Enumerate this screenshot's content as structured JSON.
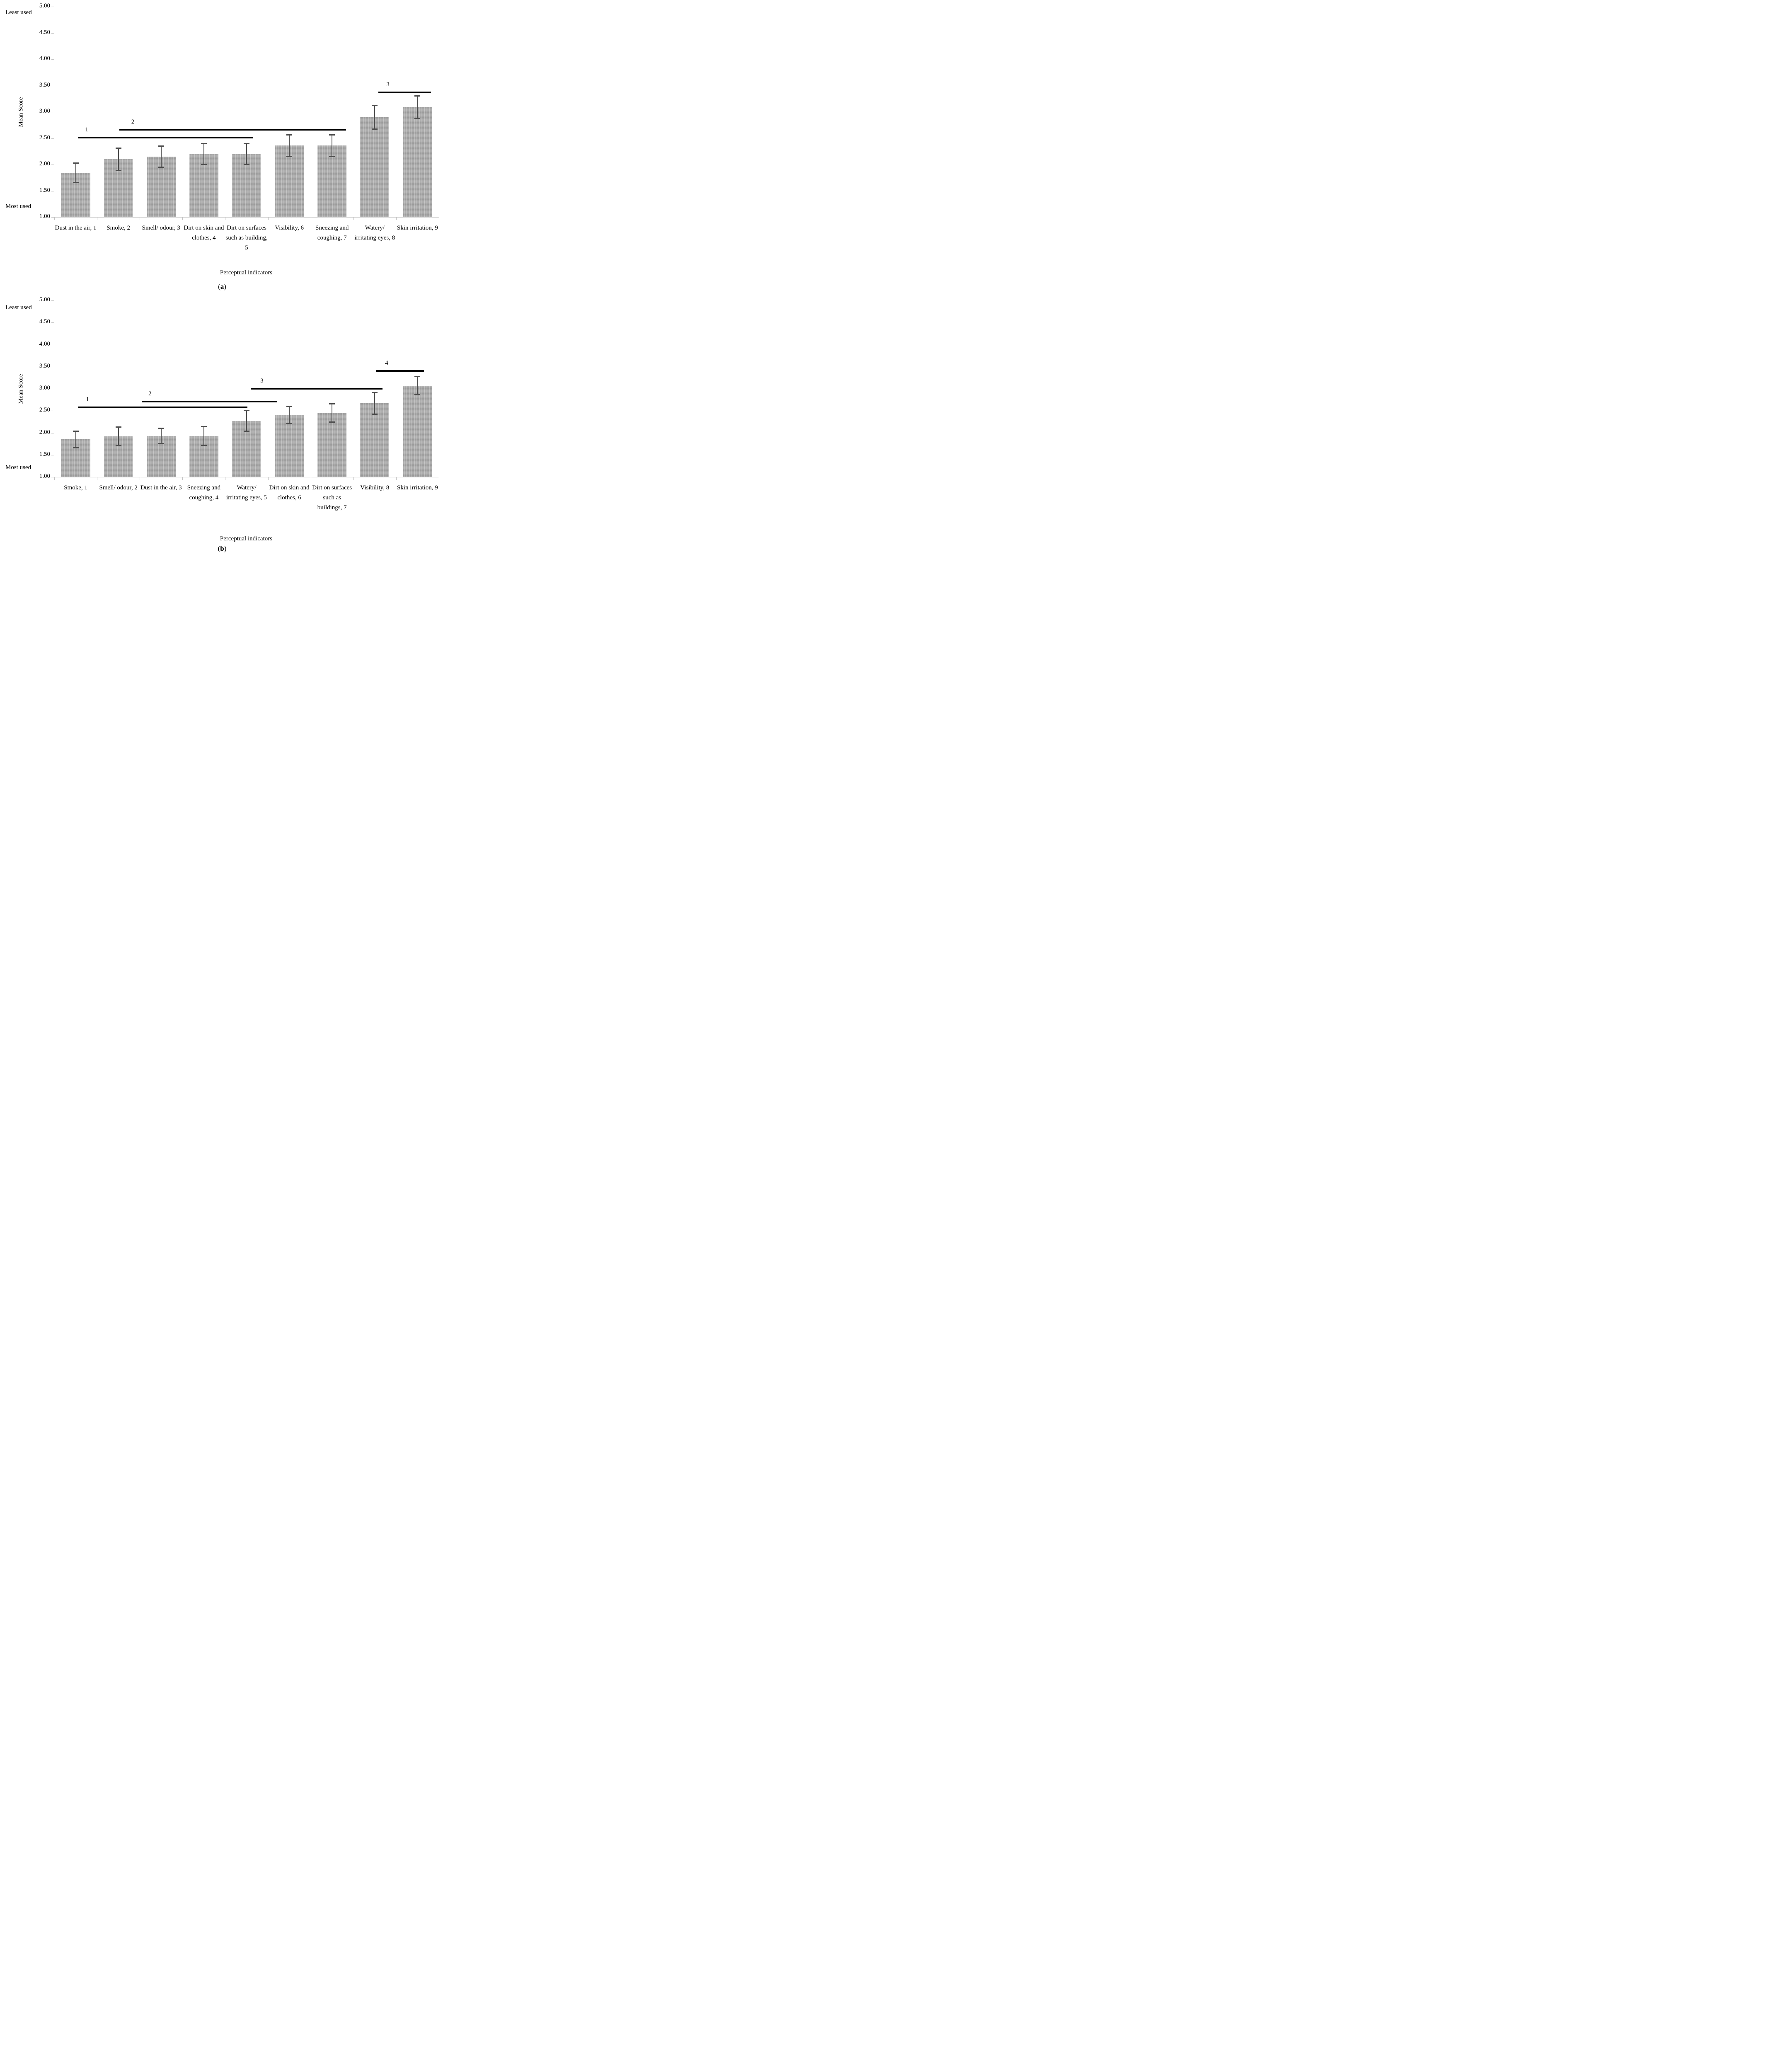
{
  "colors": {
    "bar_fill": "#adadad",
    "error_bar": "#4d4d4d",
    "significance_line": "#000000",
    "axis": "#c2c2c2",
    "text": "#000000"
  },
  "chart_data": [
    {
      "type": "bar",
      "caption": {
        "open": "(",
        "letter": "a",
        "close": ")"
      },
      "ylabel": "Mean Score",
      "xlabel": "Perceptual indicators",
      "annotations": {
        "top": "Least used",
        "bottom": "Most used"
      },
      "ylim": [
        1.0,
        5.0
      ],
      "grid": "off",
      "legend": "none",
      "yticks": [
        "5.00",
        "4.50",
        "4.00",
        "3.50",
        "3.00",
        "2.50",
        "2.00",
        "1.50",
        "1.00"
      ],
      "categories": [
        "Dust in the air, 1",
        "Smoke, 2",
        "Smell/ odour, 3",
        "Dirt on skin and clothes, 4",
        "Dirt on surfaces such as building, 5",
        "Visibility, 6",
        "Sneezing and coughing, 7",
        "Watery/ irritating eyes, 8",
        "Skin irritation, 9"
      ],
      "values": [
        1.84,
        2.1,
        2.15,
        2.2,
        2.2,
        2.36,
        2.36,
        2.9,
        3.09
      ],
      "errors": [
        0.18,
        0.21,
        0.2,
        0.19,
        0.19,
        0.2,
        0.2,
        0.22,
        0.21
      ],
      "sig_lines": [
        {
          "label": "1",
          "x1": 0.55,
          "x2": 4.65,
          "y": 2.51,
          "lx": 0.7
        },
        {
          "label": "2",
          "x1": 1.52,
          "x2": 6.83,
          "y": 2.66,
          "lx": 1.78
        },
        {
          "label": "3",
          "x1": 7.58,
          "x2": 8.82,
          "y": 3.37,
          "lx": 7.75
        }
      ]
    },
    {
      "type": "bar",
      "caption": {
        "open": "(",
        "letter": "b",
        "close": ")"
      },
      "ylabel": "Mean Score",
      "xlabel": "Perceptual indicators",
      "annotations": {
        "top": "Least used",
        "bottom": "Most used"
      },
      "ylim": [
        1.0,
        5.0
      ],
      "grid": "off",
      "legend": "none",
      "yticks": [
        "5.00",
        "4.50",
        "4.00",
        "3.50",
        "3.00",
        "2.50",
        "2.00",
        "1.50",
        "1.00"
      ],
      "categories": [
        "Smoke, 1",
        "Smell/ odour, 2",
        "Dust in the air, 3",
        "Sneezing and coughing, 4",
        "Watery/ irritating eyes, 5",
        "Dirt on skin and clothes, 6",
        "Dirt on surfaces such as buildings, 7",
        "Visibility, 8",
        "Skin irritation, 9"
      ],
      "values": [
        1.85,
        1.92,
        1.93,
        1.93,
        2.27,
        2.41,
        2.45,
        2.67,
        3.07
      ],
      "errors": [
        0.18,
        0.21,
        0.17,
        0.21,
        0.23,
        0.19,
        0.2,
        0.24,
        0.2
      ],
      "sig_lines": [
        {
          "label": "1",
          "x1": 0.55,
          "x2": 4.52,
          "y": 2.58,
          "lx": 0.72
        },
        {
          "label": "2",
          "x1": 2.05,
          "x2": 5.22,
          "y": 2.71,
          "lx": 2.18
        },
        {
          "label": "3",
          "x1": 4.6,
          "x2": 7.68,
          "y": 3.0,
          "lx": 4.8
        },
        {
          "label": "4",
          "x1": 7.54,
          "x2": 8.65,
          "y": 3.4,
          "lx": 7.72
        }
      ]
    }
  ]
}
